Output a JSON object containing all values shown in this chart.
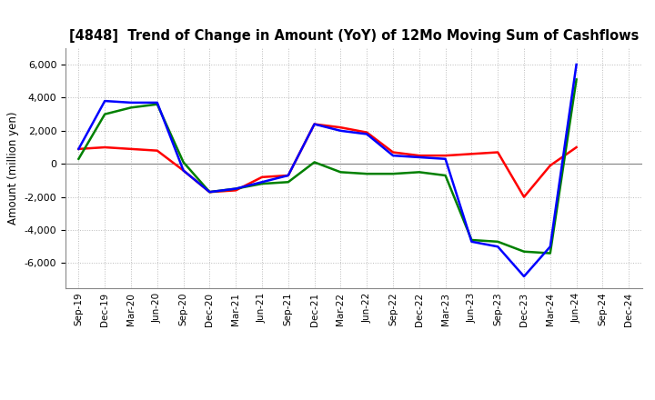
{
  "title": "[4848]  Trend of Change in Amount (YoY) of 12Mo Moving Sum of Cashflows",
  "ylabel": "Amount (million yen)",
  "xlabels": [
    "Sep-19",
    "Dec-19",
    "Mar-20",
    "Jun-20",
    "Sep-20",
    "Dec-20",
    "Mar-21",
    "Jun-21",
    "Sep-21",
    "Dec-21",
    "Mar-22",
    "Jun-22",
    "Sep-22",
    "Dec-22",
    "Mar-23",
    "Jun-23",
    "Sep-23",
    "Dec-23",
    "Mar-24",
    "Jun-24",
    "Sep-24",
    "Dec-24"
  ],
  "operating": [
    900,
    1000,
    900,
    800,
    -400,
    -1700,
    -1600,
    -800,
    -700,
    2400,
    2200,
    1900,
    700,
    500,
    500,
    600,
    700,
    -2000,
    -100,
    1000,
    null,
    null
  ],
  "investing": [
    300,
    3000,
    3400,
    3600,
    100,
    -1700,
    -1500,
    -1200,
    -1100,
    100,
    -500,
    -600,
    -600,
    -500,
    -700,
    -4600,
    -4700,
    -5300,
    -5400,
    5100,
    null,
    null
  ],
  "free": [
    900,
    3800,
    3700,
    3700,
    -400,
    -1700,
    -1500,
    -1100,
    -700,
    2400,
    2000,
    1800,
    500,
    400,
    300,
    -4700,
    -5000,
    -6800,
    -5000,
    6000,
    null,
    null
  ],
  "ylim": [
    -7500,
    7000
  ],
  "yticks": [
    -6000,
    -4000,
    -2000,
    0,
    2000,
    4000,
    6000
  ],
  "operating_color": "#ff0000",
  "investing_color": "#008000",
  "free_color": "#0000ff",
  "bg_color": "#ffffff",
  "grid_color": "#bbbbbb"
}
